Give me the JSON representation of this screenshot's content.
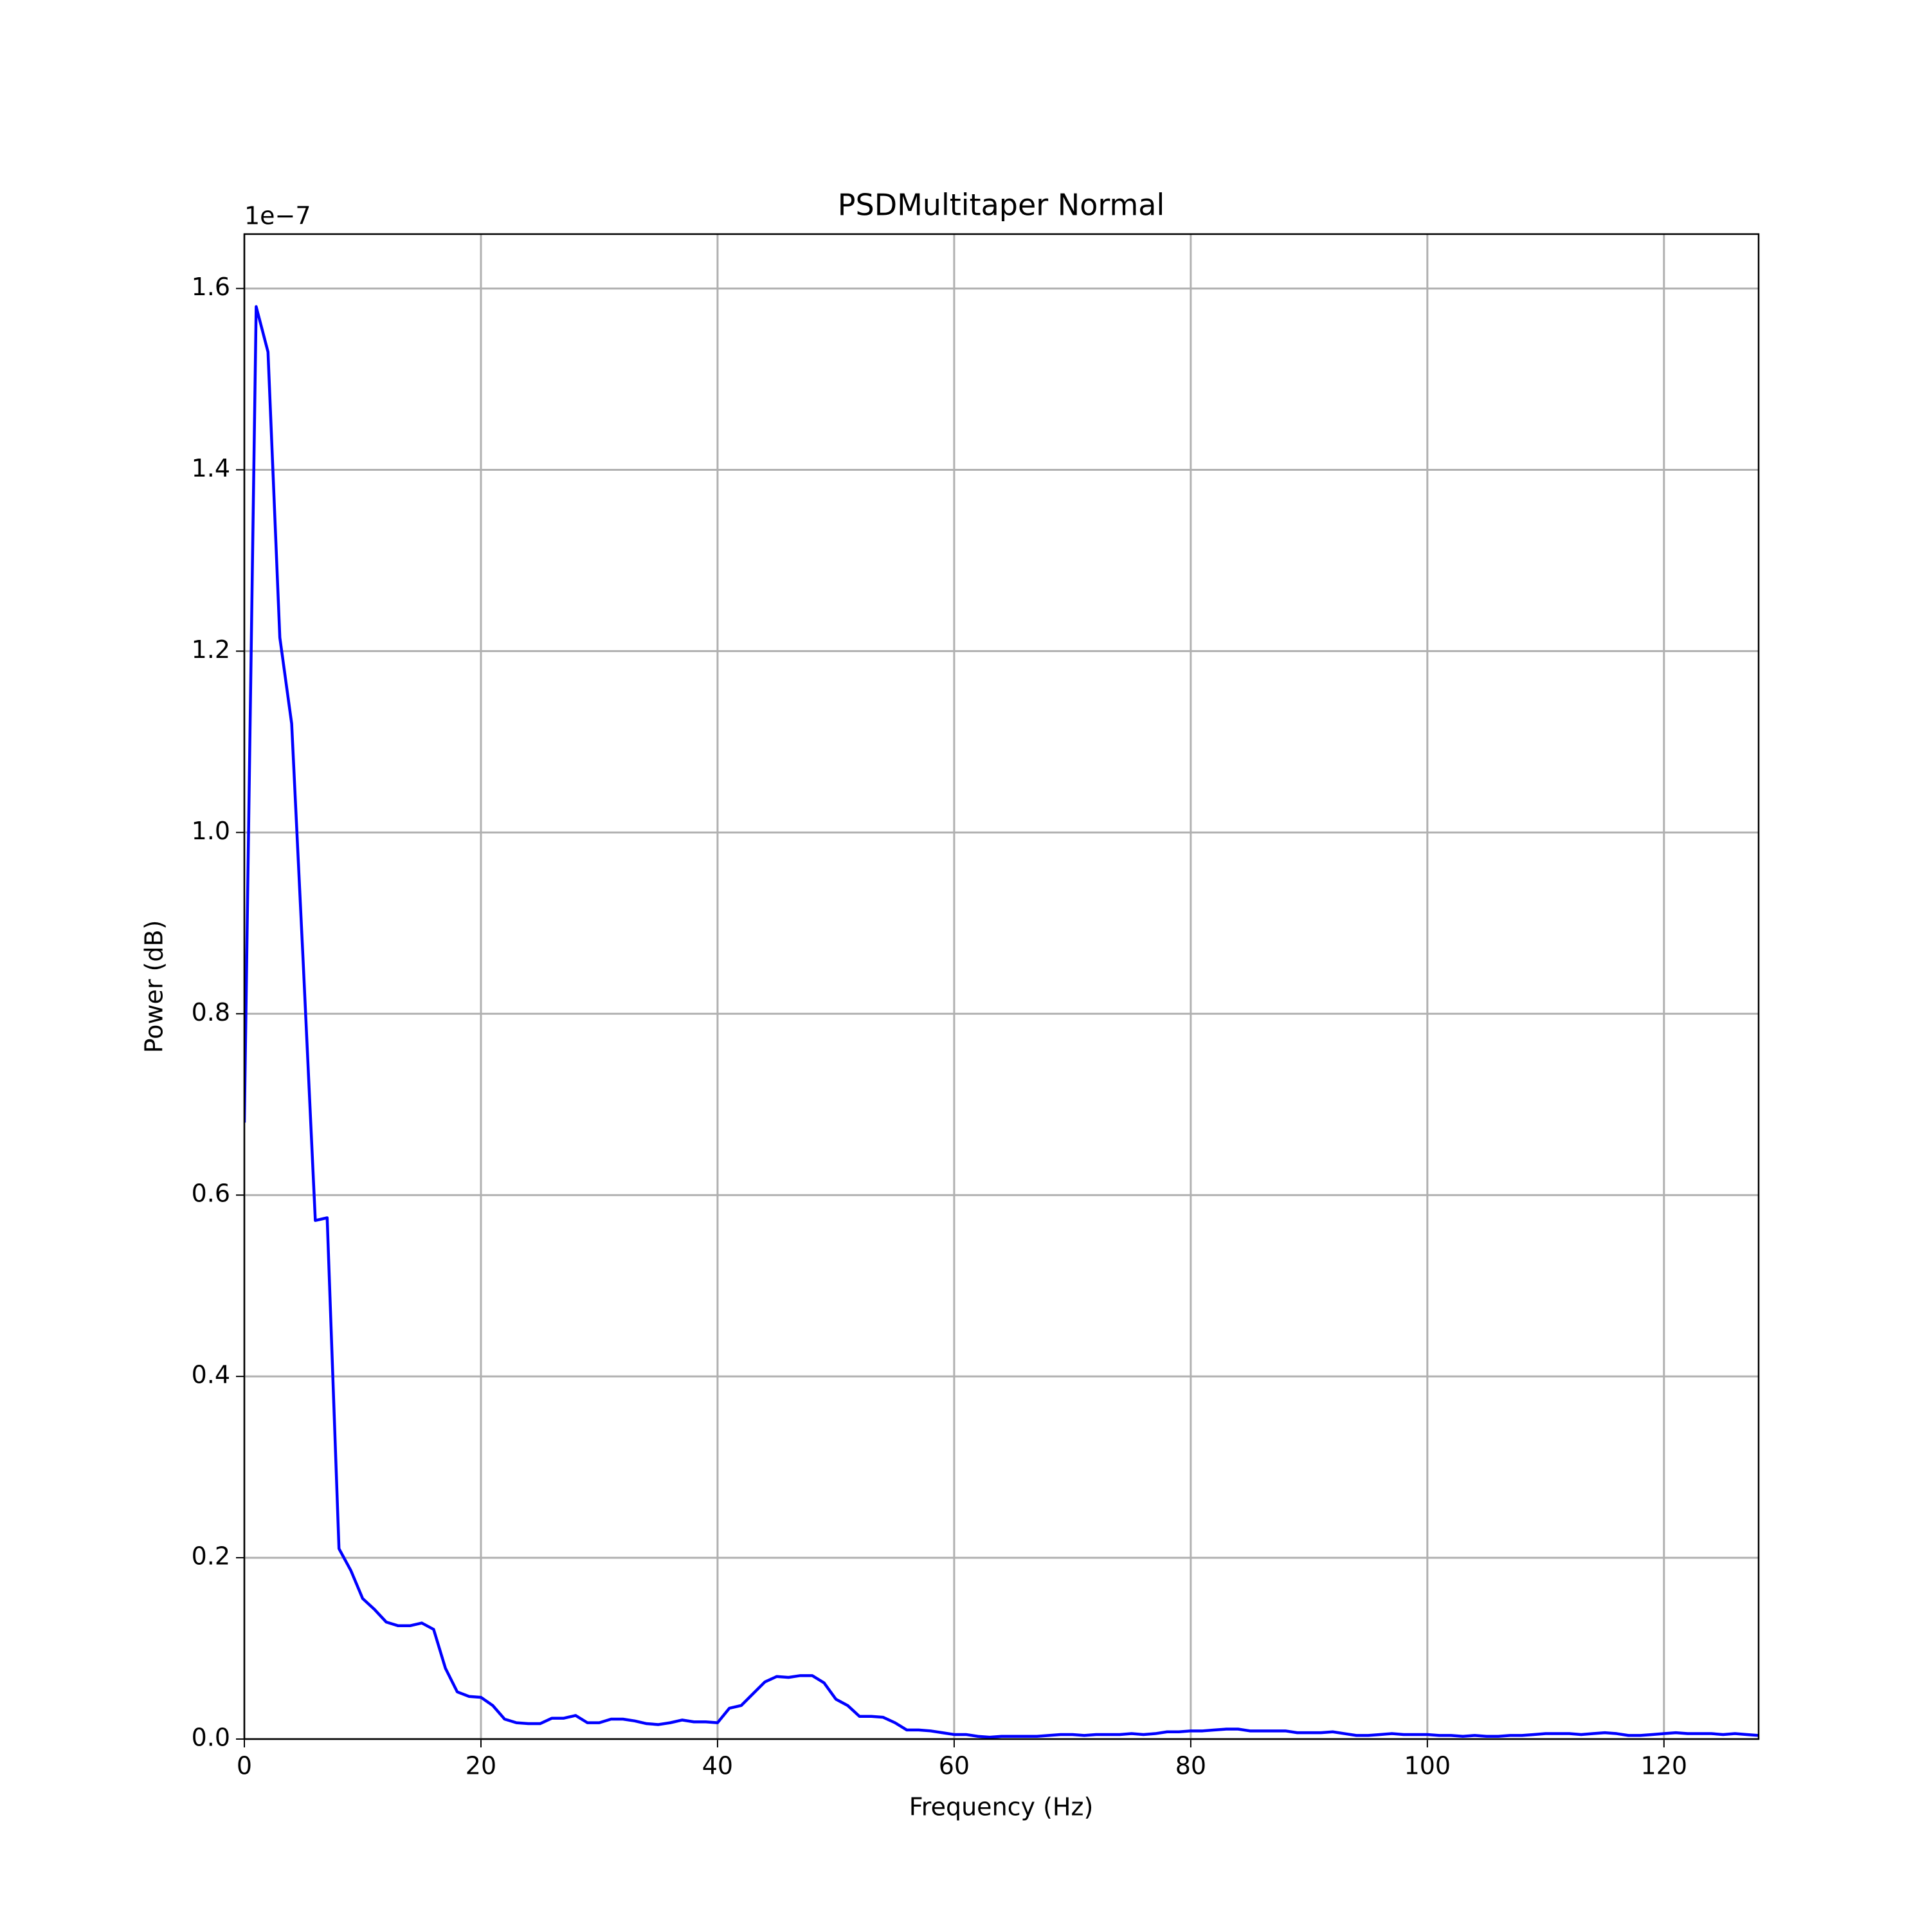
{
  "chart_data": {
    "type": "line",
    "title": "PSDMultitaper Normal",
    "x_label": "Frequency (Hz)",
    "y_label": "Power (dB)",
    "y_offset_label": "1e−7",
    "color": "#0000ff",
    "grid": true,
    "xlim": [
      0,
      128
    ],
    "ylim": [
      0,
      1.66
    ],
    "xticks": [
      0,
      20,
      40,
      60,
      80,
      100,
      120
    ],
    "yticks": [
      {
        "value": 0,
        "label": "0.0"
      },
      0.2,
      0.4,
      0.6,
      0.8,
      {
        "value": 1,
        "label": "1.0"
      },
      1.2,
      1.4,
      1.6
    ],
    "x": [
      0,
      1,
      2,
      3,
      4,
      5,
      6,
      7,
      8,
      9,
      10,
      11,
      12,
      13,
      14,
      15,
      16,
      17,
      18,
      19,
      20,
      21,
      22,
      23,
      24,
      25,
      26,
      27,
      28,
      29,
      30,
      31,
      32,
      33,
      34,
      35,
      36,
      37,
      38,
      39,
      40,
      41,
      42,
      43,
      44,
      45,
      46,
      47,
      48,
      49,
      50,
      51,
      52,
      53,
      54,
      55,
      56,
      57,
      58,
      59,
      60,
      61,
      62,
      63,
      64,
      65,
      66,
      67,
      68,
      69,
      70,
      71,
      72,
      73,
      74,
      75,
      76,
      77,
      78,
      79,
      80,
      81,
      82,
      83,
      84,
      85,
      86,
      87,
      88,
      89,
      90,
      91,
      92,
      93,
      94,
      95,
      96,
      97,
      98,
      99,
      100,
      101,
      102,
      103,
      104,
      105,
      106,
      107,
      108,
      109,
      110,
      111,
      112,
      113,
      114,
      115,
      116,
      117,
      118,
      119,
      120,
      121,
      122,
      123,
      124,
      125,
      126,
      127,
      128
    ],
    "values": [
      0.68,
      1.58,
      1.53,
      1.215,
      1.12,
      0.85,
      0.572,
      0.575,
      0.21,
      0.186,
      0.155,
      0.143,
      0.129,
      0.125,
      0.125,
      0.128,
      0.121,
      0.078,
      0.052,
      0.047,
      0.046,
      0.037,
      0.022,
      0.018,
      0.017,
      0.017,
      0.023,
      0.023,
      0.026,
      0.018,
      0.018,
      0.022,
      0.022,
      0.02,
      0.017,
      0.016,
      0.018,
      0.021,
      0.019,
      0.019,
      0.018,
      0.034,
      0.037,
      0.05,
      0.063,
      0.069,
      0.068,
      0.07,
      0.07,
      0.062,
      0.044,
      0.037,
      0.025,
      0.025,
      0.024,
      0.018,
      0.01,
      0.01,
      0.009,
      0.007,
      0.005,
      0.005,
      0.003,
      0.002,
      0.003,
      0.003,
      0.003,
      0.003,
      0.004,
      0.005,
      0.005,
      0.004,
      0.005,
      0.005,
      0.005,
      0.006,
      0.005,
      0.006,
      0.008,
      0.008,
      0.009,
      0.009,
      0.01,
      0.011,
      0.011,
      0.009,
      0.009,
      0.009,
      0.009,
      0.007,
      0.007,
      0.007,
      0.008,
      0.006,
      0.004,
      0.004,
      0.005,
      0.006,
      0.005,
      0.005,
      0.005,
      0.004,
      0.004,
      0.003,
      0.004,
      0.003,
      0.003,
      0.004,
      0.004,
      0.005,
      0.006,
      0.006,
      0.006,
      0.005,
      0.006,
      0.007,
      0.006,
      0.004,
      0.004,
      0.005,
      0.006,
      0.007,
      0.006,
      0.006,
      0.006,
      0.005,
      0.006,
      0.005,
      0.004
    ]
  }
}
